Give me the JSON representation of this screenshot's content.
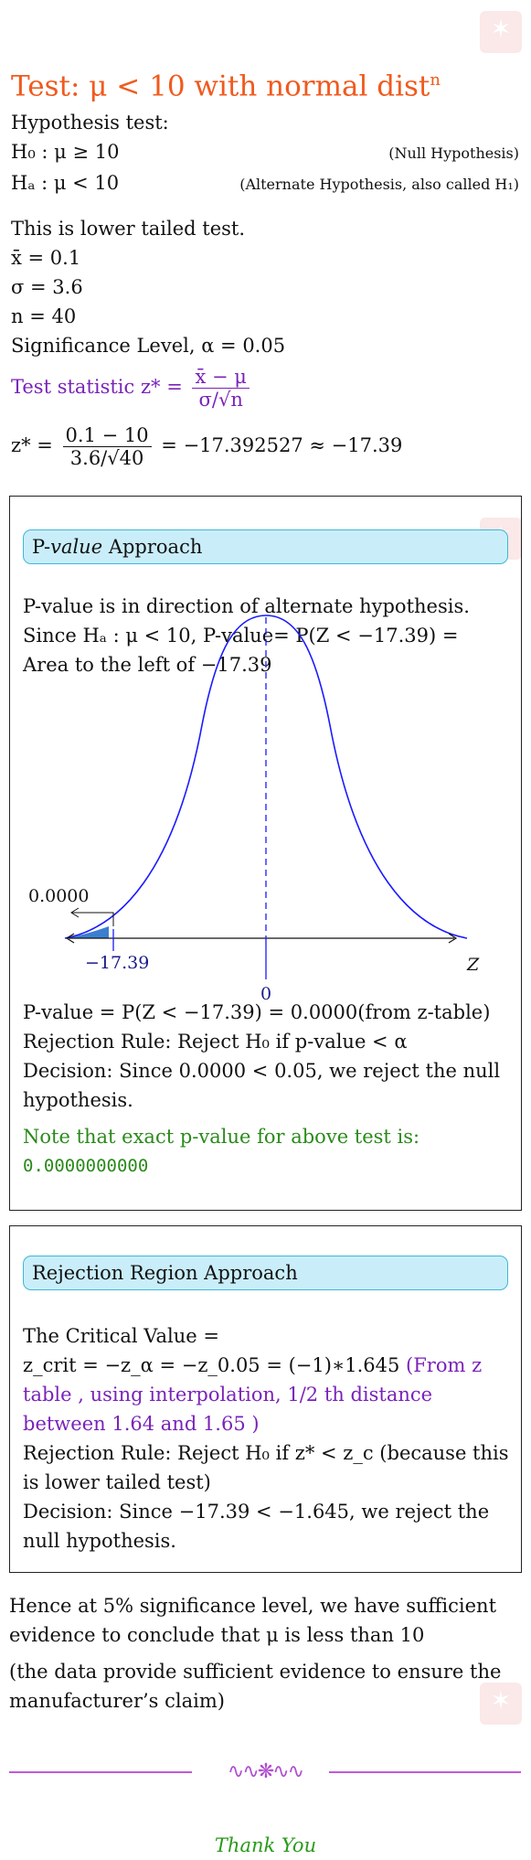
{
  "title": {
    "main": "Test: μ < 10 with normal dist",
    "sup": "n"
  },
  "hypothesis": {
    "intro": "Hypothesis test:",
    "h0": "H₀ : μ ≥ 10",
    "h0_note": "(Null Hypothesis)",
    "ha": "Hₐ : μ < 10",
    "ha_note": "(Alternate Hypothesis, also called H₁)"
  },
  "given": {
    "tail": "This is lower tailed test.",
    "xbar": "x̄ = 0.1",
    "sigma": "σ = 3.6",
    "n": "n = 40",
    "alpha": "Significance Level, α = 0.05"
  },
  "statistic": {
    "label": "Test statistic z* =",
    "num": "x̄ − μ",
    "den": "σ/√n",
    "calc_lhs": "z* =",
    "calc_num": "0.1 − 10",
    "calc_den": "3.6/√40",
    "calc_rhs": "= −17.392527 ≈ −17.39"
  },
  "pvalue_section": {
    "header_prefix": "P-",
    "header_italic": "value",
    "header_suffix": " Approach",
    "line1": "P-value is in direction of alternate hypothesis.",
    "line2": "Since Hₐ : μ < 10, P-value= P(Z < −17.39) = Area to the left of −17.39",
    "graph": {
      "area_label": "0.0000",
      "left_label": "−17.39",
      "center_label": "0",
      "axis_label": "Z"
    },
    "result1": "P-value = P(Z < −17.39) = 0.0000(from z-table)",
    "result2": "Rejection Rule: Reject H₀ if p-value < α",
    "result3": "Decision: Since 0.0000 < 0.05, we reject the null hypothesis.",
    "note": "Note that exact p-value for above test is:",
    "exact": "0.0000000000"
  },
  "rejection_section": {
    "header": "Rejection Region Approach",
    "line1": "The Critical Value =",
    "line2_math": "z_crit = −z_α = −z_0.05 = (−1)∗1.645 ",
    "line2_note": "(From z table , using interpolation, 1/2 th distance between 1.64 and 1.65 )",
    "line3": "Rejection Rule: Reject H₀ if z* < z_c (because this is lower tailed test)",
    "line4": "Decision: Since −17.39 < −1.645, we reject the null hypothesis."
  },
  "conclusion": {
    "line1": "Hence at 5% significance level, we have sufficient evidence to conclude that μ is less than 10",
    "line2": "(the data provide sufficient evidence to ensure the manufacturer’s claim)"
  },
  "ornament": "∿∿❋∿∿",
  "footer": "Thank You",
  "colors": {
    "title": "#f05a1e",
    "purple": "#7a22b8",
    "green": "#2a8a1a",
    "curve": "#1a1aff",
    "header_bg": "#c9eefa"
  }
}
